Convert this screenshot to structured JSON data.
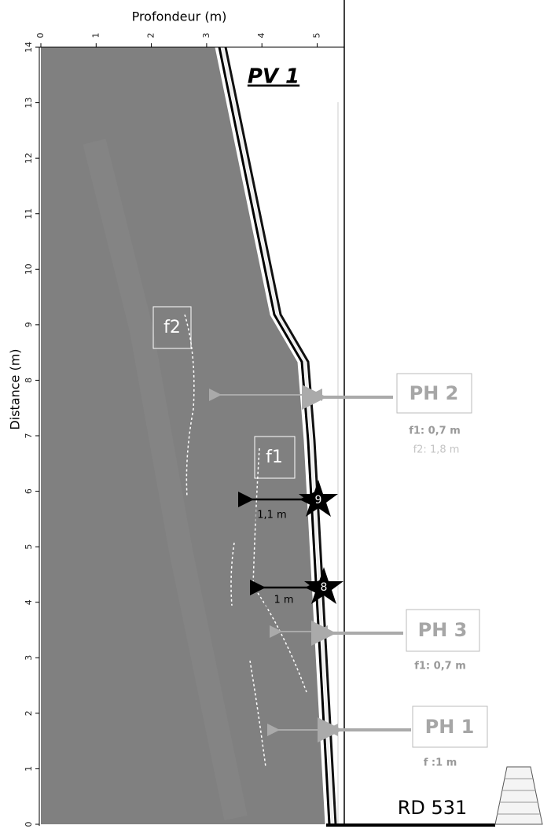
{
  "figure": {
    "title": "PV 1",
    "x_axis": {
      "label": "Profondeur (m)",
      "ticks": [
        0,
        1,
        2,
        3,
        4,
        5
      ]
    },
    "y_axis": {
      "label": "Distance (m)",
      "ticks": [
        0,
        1,
        2,
        3,
        4,
        5,
        6,
        7,
        8,
        9,
        10,
        11,
        12,
        13,
        14
      ]
    },
    "features": {
      "f2": "f2",
      "f1": "f1"
    },
    "measures": {
      "m9": "1,1 m",
      "m8": "1 m"
    },
    "stars": {
      "s9": "9",
      "s8": "8"
    },
    "pits": [
      {
        "name": "PH 2",
        "notes": [
          "f1: 0,7 m",
          "f2: 1,8 m"
        ]
      },
      {
        "name": "PH 3",
        "notes": [
          "f1: 0,7 m"
        ]
      },
      {
        "name": "PH 1",
        "notes": [
          "f :1 m"
        ]
      }
    ],
    "road": "RD 531"
  }
}
